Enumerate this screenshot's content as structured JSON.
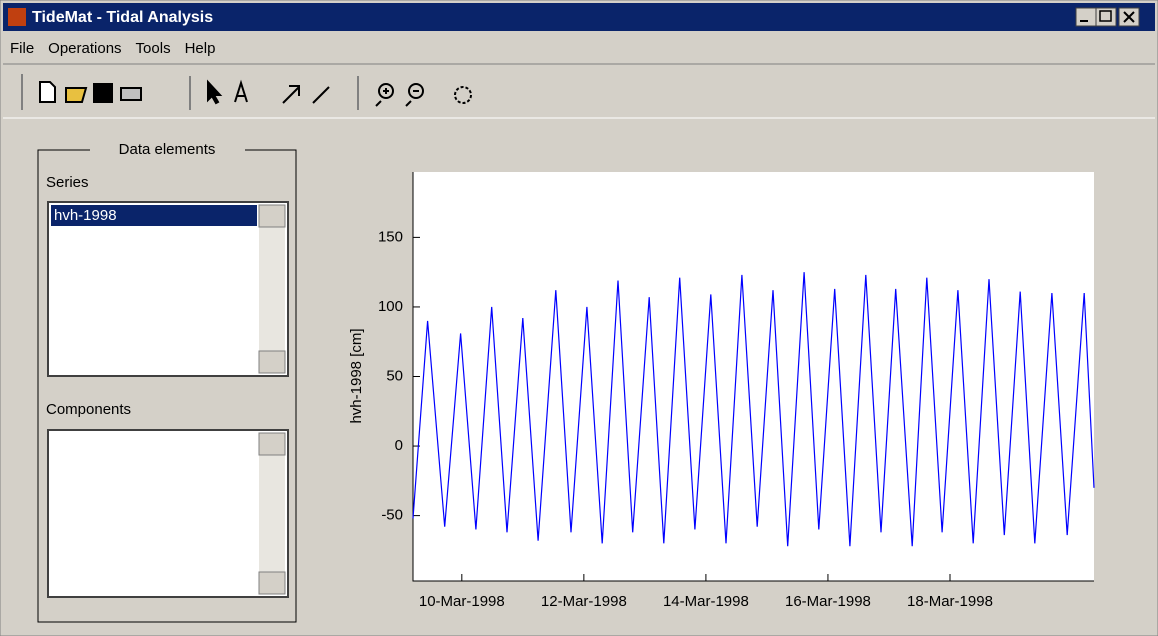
{
  "window": {
    "title": "TideMat - Tidal Analysis"
  },
  "menu": [
    "File",
    "Operations",
    "Tools",
    "Help"
  ],
  "panel": {
    "title": "Data elements",
    "series_label": "Series",
    "series_items": [
      "hvh-1998"
    ],
    "components_label": "Components"
  },
  "chart_data": {
    "type": "line",
    "y_label": "hvh-1998 [cm]",
    "color": "#0000ff",
    "x": [
      9.2,
      9.44,
      9.72,
      9.98,
      10.23,
      10.49,
      10.74,
      11.0,
      11.25,
      11.54,
      11.79,
      12.05,
      12.3,
      12.56,
      12.8,
      13.07,
      13.31,
      13.57,
      13.82,
      14.08,
      14.33,
      14.59,
      14.84,
      15.1,
      15.34,
      15.61,
      15.85,
      16.11,
      16.36,
      16.62,
      16.87,
      17.11,
      17.38,
      17.62,
      17.87,
      18.13,
      18.38,
      18.64,
      18.89,
      19.15,
      19.39,
      19.67,
      19.92,
      20.2,
      20.36
    ],
    "values": [
      -52,
      90,
      -58,
      81,
      -60,
      100,
      -62,
      92,
      -68,
      112,
      -62,
      100,
      -70,
      119,
      -62,
      107,
      -70,
      121,
      -60,
      109,
      -70,
      123,
      -58,
      112,
      -72,
      125,
      -60,
      113,
      -72,
      123,
      -62,
      113,
      -72,
      121,
      -62,
      112,
      -70,
      120,
      -64,
      111,
      -70,
      110,
      -64,
      110,
      -30
    ],
    "xlim": [
      9.2,
      20.36
    ],
    "ylim": [
      -97,
      197
    ],
    "xticks": [
      {
        "value": 10,
        "label": "10-Mar-1998"
      },
      {
        "value": 12,
        "label": "12-Mar-1998"
      },
      {
        "value": 14,
        "label": "14-Mar-1998"
      },
      {
        "value": 16,
        "label": "16-Mar-1998"
      },
      {
        "value": 18,
        "label": "18-Mar-1998"
      }
    ],
    "yticks": [
      -50,
      0,
      50,
      100,
      150
    ]
  }
}
